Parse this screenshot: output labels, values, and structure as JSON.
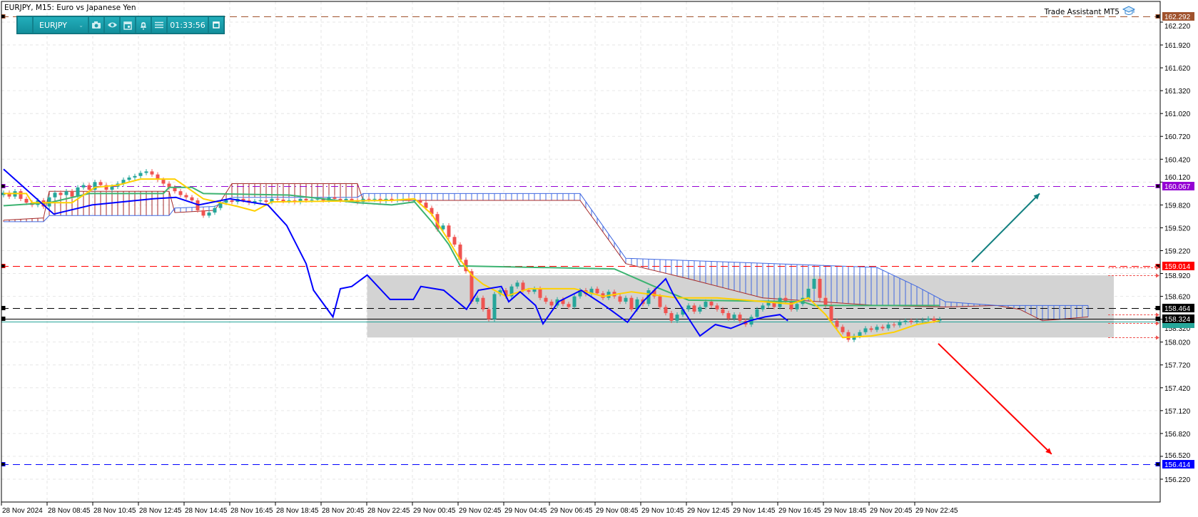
{
  "header": {
    "title": "EURJPY, M15:  Euro vs Japanese Yen",
    "brand": "Trade Assistant MT5",
    "brand_icon": "graduation-cap-icon"
  },
  "toolbar": {
    "symbol": "EURJPY",
    "timer": "01:33:56",
    "icons": [
      "blank-icon",
      "chevron-down-icon",
      "camera-icon",
      "eye-icon",
      "calendar-icon",
      "bell-plus-icon",
      "menu-icon",
      "restore-window-icon"
    ],
    "color": "#1a9aa8"
  },
  "chart_data": {
    "type": "candlestick",
    "symbol": "EURJPY",
    "timeframe": "M15",
    "ylim": [
      155.92,
      162.5
    ],
    "y_ticks": [
      "162.220",
      "161.920",
      "161.620",
      "161.320",
      "161.020",
      "160.720",
      "160.420",
      "160.120",
      "159.820",
      "159.520",
      "159.220",
      "158.920",
      "158.620",
      "158.320",
      "158.020",
      "157.720",
      "157.420",
      "157.120",
      "156.820",
      "156.520",
      "156.220"
    ],
    "x_ticks": [
      "28 Nov 2024",
      "28 Nov 08:45",
      "28 Nov 10:45",
      "28 Nov 12:45",
      "28 Nov 14:45",
      "28 Nov 16:45",
      "28 Nov 18:45",
      "28 Nov 20:45",
      "28 Nov 22:45",
      "29 Nov 00:45",
      "29 Nov 02:45",
      "29 Nov 04:45",
      "29 Nov 06:45",
      "29 Nov 08:45",
      "29 Nov 10:45",
      "29 Nov 12:45",
      "29 Nov 14:45",
      "29 Nov 16:45",
      "29 Nov 18:45",
      "29 Nov 20:45",
      "29 Nov 22:45"
    ],
    "grid": true,
    "colors": {
      "up": "#26a69a",
      "down": "#ef5350",
      "tenkan": "#ffd000",
      "kijun": "#3cb371",
      "chikou": "#0000ff",
      "span_a": "#a52a2a",
      "span_b": "#4169e1",
      "zone": "#d3d3d3"
    },
    "first_open": 159.95,
    "close": [
      159.98,
      159.93,
      160.0,
      159.9,
      159.85,
      159.82,
      159.88,
      159.8,
      159.92,
      159.98,
      159.95,
      160.0,
      159.93,
      160.05,
      160.08,
      160.02,
      160.12,
      160.08,
      160.02,
      160.06,
      160.1,
      160.15,
      160.18,
      160.2,
      160.24,
      160.26,
      160.22,
      160.15,
      160.1,
      160.05,
      160.0,
      159.95,
      159.92,
      159.88,
      159.75,
      159.68,
      159.72,
      159.78,
      159.85,
      159.88,
      159.86,
      159.9,
      159.88,
      159.85,
      159.87,
      159.88,
      159.86,
      159.9,
      159.89,
      159.87,
      159.88,
      159.86,
      159.9,
      159.88,
      159.89,
      159.9,
      159.88,
      159.92,
      159.9,
      159.88,
      159.9,
      159.88,
      159.86,
      159.9,
      159.89,
      159.9,
      159.87,
      159.9,
      159.88,
      159.89,
      159.9,
      159.88,
      159.88,
      159.85,
      159.78,
      159.7,
      159.5,
      159.55,
      159.4,
      159.3,
      159.1,
      158.95,
      158.55,
      158.6,
      158.45,
      158.32,
      158.65,
      158.7,
      158.62,
      158.75,
      158.8,
      158.7,
      158.68,
      158.72,
      158.6,
      158.55,
      158.5,
      158.58,
      158.52,
      158.48,
      158.62,
      158.7,
      158.65,
      158.72,
      158.66,
      158.6,
      158.68,
      158.62,
      158.55,
      158.6,
      158.45,
      158.58,
      158.52,
      158.7,
      158.62,
      158.48,
      158.4,
      158.3,
      158.38,
      158.45,
      158.5,
      158.42,
      158.48,
      158.55,
      158.5,
      158.45,
      158.4,
      158.33,
      158.38,
      158.3,
      158.25,
      158.35,
      158.45,
      158.5,
      158.55,
      158.48,
      158.6,
      158.55,
      158.45,
      158.52,
      158.6,
      158.72,
      158.85,
      158.6,
      158.5,
      158.3,
      158.22,
      158.15,
      158.05,
      158.1,
      158.15,
      158.2,
      158.18,
      158.22,
      158.2,
      158.25,
      158.24,
      158.28,
      158.3,
      158.28,
      158.3,
      158.31,
      158.33,
      158.3,
      158.32
    ],
    "tenkan": [
      [
        0,
        159.97
      ],
      [
        4,
        159.97
      ],
      [
        5,
        159.85
      ],
      [
        12,
        159.85
      ],
      [
        16,
        160.05
      ],
      [
        20,
        160.08
      ],
      [
        24,
        160.16
      ],
      [
        30,
        160.16
      ],
      [
        35,
        159.9
      ],
      [
        41,
        159.8
      ],
      [
        44,
        159.74
      ],
      [
        47,
        159.86
      ],
      [
        68,
        159.88
      ],
      [
        72,
        159.9
      ],
      [
        75,
        159.7
      ],
      [
        78,
        159.35
      ],
      [
        80,
        159.1
      ],
      [
        82,
        158.9
      ],
      [
        84,
        158.78
      ],
      [
        88,
        158.62
      ],
      [
        92,
        158.72
      ],
      [
        100,
        158.72
      ],
      [
        105,
        158.62
      ],
      [
        110,
        158.68
      ],
      [
        118,
        158.6
      ],
      [
        125,
        158.6
      ],
      [
        130,
        158.57
      ],
      [
        138,
        158.52
      ],
      [
        141,
        158.6
      ],
      [
        144,
        158.38
      ],
      [
        147,
        158.08
      ],
      [
        152,
        158.1
      ],
      [
        156,
        158.15
      ],
      [
        160,
        158.25
      ],
      [
        164,
        158.3
      ]
    ],
    "kijun": [
      [
        0,
        159.81
      ],
      [
        8,
        159.85
      ],
      [
        15,
        159.97
      ],
      [
        28,
        159.97
      ],
      [
        29,
        160.05
      ],
      [
        33,
        160.05
      ],
      [
        35,
        159.97
      ],
      [
        50,
        159.95
      ],
      [
        62,
        159.85
      ],
      [
        68,
        159.82
      ],
      [
        72,
        159.86
      ],
      [
        75,
        159.6
      ],
      [
        78,
        159.3
      ],
      [
        80,
        159.02
      ],
      [
        107,
        158.98
      ],
      [
        114,
        158.75
      ],
      [
        120,
        158.57
      ],
      [
        140,
        158.55
      ],
      [
        142,
        158.5
      ],
      [
        164,
        158.5
      ]
    ],
    "chikou": [
      [
        0,
        160.29
      ],
      [
        8.8,
        159.7
      ],
      [
        15.5,
        159.82
      ],
      [
        26.2,
        159.9
      ],
      [
        30.2,
        159.92
      ],
      [
        34.2,
        159.82
      ],
      [
        39.6,
        159.9
      ],
      [
        46.3,
        159.82
      ],
      [
        49.6,
        159.55
      ],
      [
        53,
        159.05
      ],
      [
        54.3,
        158.7
      ],
      [
        57.7,
        158.35
      ],
      [
        59,
        158.72
      ],
      [
        61,
        158.75
      ],
      [
        63.7,
        158.9
      ],
      [
        67.7,
        158.58
      ],
      [
        71.8,
        158.58
      ],
      [
        73.1,
        158.75
      ],
      [
        77.1,
        158.7
      ],
      [
        81.1,
        158.45
      ],
      [
        83.2,
        158.7
      ],
      [
        87.2,
        158.75
      ],
      [
        88.5,
        158.55
      ],
      [
        90.5,
        158.68
      ],
      [
        93.2,
        158.5
      ],
      [
        94.5,
        158.26
      ],
      [
        97.2,
        158.55
      ],
      [
        101.2,
        158.7
      ],
      [
        105.3,
        158.5
      ],
      [
        109.3,
        158.28
      ],
      [
        112,
        158.55
      ],
      [
        116,
        158.85
      ],
      [
        117.3,
        158.65
      ],
      [
        120.7,
        158.25
      ],
      [
        122,
        158.1
      ],
      [
        124.7,
        158.25
      ],
      [
        127.4,
        158.2
      ],
      [
        130.7,
        158.3
      ],
      [
        133.4,
        158.35
      ],
      [
        136,
        158.38
      ],
      [
        137.4,
        158.3
      ]
    ],
    "span_a": [
      [
        0,
        159.62
      ],
      [
        7,
        159.65
      ],
      [
        8,
        160.0
      ],
      [
        29,
        160.0
      ],
      [
        30,
        159.72
      ],
      [
        37,
        159.75
      ],
      [
        40,
        160.1
      ],
      [
        62,
        160.1
      ],
      [
        63,
        159.88
      ],
      [
        101,
        159.88
      ],
      [
        109,
        159.05
      ],
      [
        120,
        158.85
      ],
      [
        133,
        158.6
      ],
      [
        153,
        158.5
      ],
      [
        165,
        158.48
      ],
      [
        174,
        158.5
      ],
      [
        178,
        158.45
      ],
      [
        182,
        158.3
      ],
      [
        190,
        158.35
      ]
    ],
    "span_b": [
      [
        0,
        159.6
      ],
      [
        7,
        159.6
      ],
      [
        8,
        159.68
      ],
      [
        29,
        159.68
      ],
      [
        30,
        159.78
      ],
      [
        37,
        159.8
      ],
      [
        40,
        159.92
      ],
      [
        62,
        159.92
      ],
      [
        63,
        159.97
      ],
      [
        101,
        159.97
      ],
      [
        109,
        159.12
      ],
      [
        153,
        159.0
      ],
      [
        160,
        158.75
      ],
      [
        165,
        158.55
      ],
      [
        174,
        158.5
      ],
      [
        178,
        158.5
      ],
      [
        190,
        158.5
      ]
    ],
    "levels": [
      {
        "price": "162.292",
        "color": "#a0522d",
        "style": "dashed"
      },
      {
        "price": "160.067",
        "color": "#9400d3",
        "style": "dash-dot"
      },
      {
        "price": "159.014",
        "color": "#ff0000",
        "style": "dashed"
      },
      {
        "price": "158.464",
        "color": "#000000",
        "style": "dashed"
      },
      {
        "price": "158.324",
        "color": "#000000",
        "style": "solid"
      },
      {
        "price": "156.414",
        "color": "#0000ff",
        "style": "dashed"
      }
    ],
    "ask_line": {
      "price": 158.285,
      "color": "#26a69a"
    },
    "zone": {
      "top": 158.896,
      "bottom": 158.08,
      "from_bar": 63.7,
      "to_bar": 194.5
    },
    "target_markers": [
      159.0,
      158.896,
      158.38,
      158.27,
      158.08
    ],
    "arrows": [
      {
        "from": [
          169.6,
          159.07
        ],
        "to": [
          181.5,
          159.97
        ],
        "color": "#138080"
      },
      {
        "from": [
          163.75,
          158.0
        ],
        "to": [
          183.6,
          156.55
        ],
        "color": "#ff0000"
      }
    ]
  }
}
